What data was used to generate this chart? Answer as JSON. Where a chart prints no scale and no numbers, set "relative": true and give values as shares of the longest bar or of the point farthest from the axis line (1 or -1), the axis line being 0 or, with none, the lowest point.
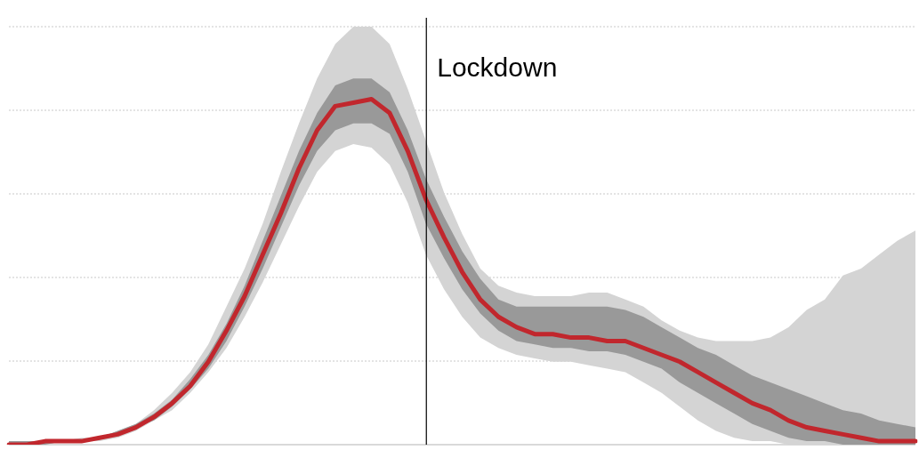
{
  "chart_data": {
    "type": "line",
    "relative": true,
    "grid": "y",
    "categories": [
      null,
      null,
      null,
      null,
      null,
      null,
      null,
      null,
      null,
      null,
      null,
      null,
      null,
      null,
      null,
      null,
      null,
      null,
      null,
      null,
      null,
      null,
      null,
      null,
      null,
      null,
      null,
      null,
      null,
      null,
      null,
      null,
      null,
      null,
      null,
      null,
      null,
      null,
      null,
      null,
      null,
      null,
      null,
      null,
      null,
      null,
      null,
      null,
      null,
      null,
      null
    ],
    "series": [
      {
        "color": "#d4d4d4",
        "values": [
          null,
          null,
          null,
          null,
          null,
          null,
          null,
          null,
          null,
          null,
          null,
          null,
          null,
          null,
          null,
          null,
          null,
          null,
          null,
          null,
          null,
          null,
          null,
          null,
          null,
          null,
          null,
          null,
          null,
          null,
          null,
          null,
          null,
          null,
          null,
          null,
          null,
          null,
          null,
          null,
          null,
          null,
          null,
          null,
          null,
          null,
          null,
          null,
          null,
          null,
          null
        ],
        "upper": [
          0.01,
          0.01,
          0.01,
          0.01,
          0.02,
          0.02,
          0.04,
          0.06,
          0.1,
          0.15,
          0.21,
          0.29,
          0.4,
          0.51,
          0.64,
          0.79,
          0.93,
          1.06,
          1.16,
          1.21,
          1.21,
          1.16,
          1.03,
          0.88,
          0.73,
          0.61,
          0.51,
          0.46,
          0.44,
          0.43,
          0.43,
          0.43,
          0.44,
          0.44,
          0.42,
          0.4,
          0.36,
          0.33,
          0.31,
          0.3,
          0.3,
          0.3,
          0.31,
          0.34,
          0.39,
          0.42,
          0.49,
          0.51,
          0.55,
          0.59,
          0.62
        ],
        "lower": [
          0,
          0,
          0.0,
          0.01,
          0.01,
          0.01,
          0.02,
          0.04,
          0.07,
          0.1,
          0.15,
          0.21,
          0.28,
          0.37,
          0.47,
          0.58,
          0.69,
          0.79,
          0.85,
          0.87,
          0.86,
          0.81,
          0.7,
          0.55,
          0.45,
          0.37,
          0.31,
          0.28,
          0.26,
          0.25,
          0.24,
          0.24,
          0.23,
          0.22,
          0.21,
          0.18,
          0.15,
          0.11,
          0.07,
          0.04,
          0.02,
          0.01,
          0.01,
          0.0,
          0.0,
          0,
          0,
          0,
          0,
          0,
          0
        ]
      },
      {
        "color": "#999999",
        "values": [
          null,
          null,
          null,
          null,
          null,
          null,
          null,
          null,
          null,
          null,
          null,
          null,
          null,
          null,
          null,
          null,
          null,
          null,
          null,
          null,
          null,
          null,
          null,
          null,
          null,
          null,
          null,
          null,
          null,
          null,
          null,
          null,
          null,
          null,
          null,
          null,
          null,
          null,
          null,
          null,
          null,
          null,
          null,
          null,
          null,
          null,
          null,
          null,
          null,
          null,
          null
        ],
        "upper": [
          0.01,
          0.01,
          0.01,
          0.01,
          0.01,
          0.02,
          0.04,
          0.06,
          0.09,
          0.13,
          0.19,
          0.26,
          0.35,
          0.46,
          0.59,
          0.72,
          0.85,
          0.96,
          1.04,
          1.06,
          1.06,
          1.02,
          0.91,
          0.77,
          0.66,
          0.56,
          0.48,
          0.42,
          0.4,
          0.4,
          0.4,
          0.4,
          0.4,
          0.4,
          0.39,
          0.37,
          0.34,
          0.31,
          0.28,
          0.26,
          0.23,
          0.2,
          0.18,
          0.16,
          0.14,
          0.12,
          0.1,
          0.09,
          0.07,
          0.06,
          0.05
        ],
        "lower": [
          0,
          0,
          0.0,
          0.01,
          0.01,
          0.02,
          0.03,
          0.05,
          0.07,
          0.11,
          0.16,
          0.22,
          0.3,
          0.4,
          0.51,
          0.63,
          0.75,
          0.85,
          0.91,
          0.93,
          0.93,
          0.9,
          0.79,
          0.64,
          0.54,
          0.45,
          0.38,
          0.33,
          0.3,
          0.29,
          0.28,
          0.28,
          0.27,
          0.27,
          0.26,
          0.24,
          0.22,
          0.18,
          0.15,
          0.12,
          0.09,
          0.06,
          0.04,
          0.02,
          0.01,
          0.01,
          0.0,
          0.0,
          0,
          0,
          0
        ]
      },
      {
        "color": "#c1272d",
        "values": [
          0.0,
          0.0,
          0.01,
          0.01,
          0.01,
          0.02,
          0.03,
          0.05,
          0.08,
          0.12,
          0.17,
          0.24,
          0.33,
          0.43,
          0.55,
          0.67,
          0.8,
          0.91,
          0.98,
          0.99,
          1.0,
          0.96,
          0.85,
          0.71,
          0.6,
          0.5,
          0.42,
          0.37,
          0.34,
          0.32,
          0.32,
          0.31,
          0.31,
          0.3,
          0.3,
          0.28,
          0.26,
          0.24,
          0.21,
          0.18,
          0.15,
          0.12,
          0.1,
          0.07,
          0.05,
          0.04,
          0.03,
          0.02,
          0.01,
          0.01,
          0.01
        ]
      }
    ],
    "annotations": [
      "Lockdown"
    ]
  }
}
